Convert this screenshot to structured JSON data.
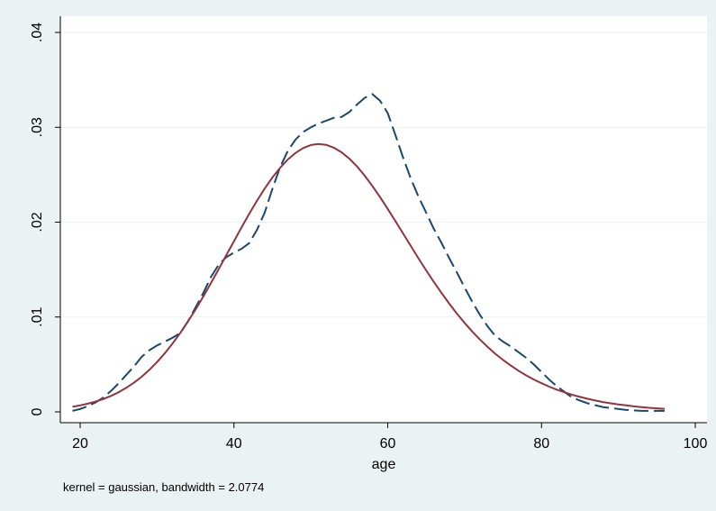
{
  "chart_data": {
    "type": "line",
    "title": "",
    "xlabel": "age",
    "ylabel": "",
    "note": "kernel = gaussian, bandwidth = 2.0774",
    "xlim": [
      19,
      96
    ],
    "ylim": [
      0,
      0.04
    ],
    "x_ticks": [
      20,
      40,
      60,
      80,
      100
    ],
    "x_tick_labels": [
      "20",
      "40",
      "60",
      "80",
      "100"
    ],
    "y_ticks": [
      0,
      0.01,
      0.02,
      0.03,
      0.04
    ],
    "y_tick_labels": [
      "0",
      ".01",
      ".02",
      ".03",
      ".04"
    ],
    "grid": true,
    "legend": "none",
    "colors": {
      "background": "#eaf2f3",
      "plot_area": "#ffffff",
      "kernel_density": "#1a476f",
      "normal_density": "#90353b",
      "grid": "#eaf2f3"
    },
    "series": [
      {
        "style": "dashed",
        "x": [
          19,
          20,
          21,
          22,
          23,
          24,
          25,
          26,
          27,
          28,
          29,
          30,
          31,
          32,
          33,
          34,
          35,
          36,
          37,
          38,
          39,
          40,
          41,
          42,
          43,
          44,
          45,
          46,
          47,
          48,
          49,
          50,
          51,
          52,
          53,
          54,
          55,
          56,
          57,
          58,
          59,
          60,
          61,
          62,
          63,
          64,
          65,
          66,
          67,
          68,
          69,
          70,
          71,
          72,
          73,
          74,
          75,
          76,
          77,
          78,
          79,
          80,
          81,
          82,
          83,
          84,
          85,
          86,
          87,
          88,
          89,
          90,
          91,
          92,
          93,
          94,
          95,
          96
        ],
        "values": [
          0.0001,
          0.0003,
          0.0006,
          0.001,
          0.0015,
          0.0022,
          0.003,
          0.0039,
          0.0048,
          0.0058,
          0.0065,
          0.007,
          0.0074,
          0.0078,
          0.0083,
          0.0095,
          0.011,
          0.0125,
          0.0142,
          0.0155,
          0.0163,
          0.0168,
          0.0172,
          0.0178,
          0.0192,
          0.021,
          0.0235,
          0.0258,
          0.0275,
          0.0287,
          0.0295,
          0.03,
          0.0304,
          0.0307,
          0.031,
          0.0311,
          0.0316,
          0.0324,
          0.0331,
          0.0335,
          0.0328,
          0.0315,
          0.0292,
          0.0268,
          0.0246,
          0.0227,
          0.021,
          0.0193,
          0.0178,
          0.0162,
          0.0147,
          0.0131,
          0.0116,
          0.0102,
          0.009,
          0.008,
          0.0074,
          0.0069,
          0.0063,
          0.0057,
          0.005,
          0.0042,
          0.0034,
          0.0027,
          0.0021,
          0.0015,
          0.0012,
          0.0009,
          0.0007,
          0.0005,
          0.0004,
          0.0003,
          0.0002,
          0.00015,
          0.0001,
          0.0001,
          0.0001,
          0.0001
        ]
      },
      {
        "style": "solid",
        "x": [
          19,
          20,
          21,
          22,
          23,
          24,
          25,
          26,
          27,
          28,
          29,
          30,
          31,
          32,
          33,
          34,
          35,
          36,
          37,
          38,
          39,
          40,
          41,
          42,
          43,
          44,
          45,
          46,
          47,
          48,
          49,
          50,
          51,
          52,
          53,
          54,
          55,
          56,
          57,
          58,
          59,
          60,
          61,
          62,
          63,
          64,
          65,
          66,
          67,
          68,
          69,
          70,
          71,
          72,
          73,
          74,
          75,
          76,
          77,
          78,
          79,
          80,
          81,
          82,
          83,
          84,
          85,
          86,
          87,
          88,
          89,
          90,
          91,
          92,
          93,
          94,
          95,
          96
        ],
        "values": [
          0.00053,
          0.00068,
          0.00086,
          0.00108,
          0.00135,
          0.00168,
          0.00207,
          0.00254,
          0.00308,
          0.00371,
          0.00443,
          0.00525,
          0.00617,
          0.00718,
          0.00829,
          0.0095,
          0.01078,
          0.01214,
          0.01356,
          0.01502,
          0.01651,
          0.018,
          0.01947,
          0.0209,
          0.02227,
          0.02354,
          0.0247,
          0.02573,
          0.0266,
          0.0273,
          0.02781,
          0.02813,
          0.02824,
          0.02815,
          0.02785,
          0.02736,
          0.0267,
          0.02587,
          0.0249,
          0.02382,
          0.02264,
          0.0214,
          0.02011,
          0.0188,
          0.01749,
          0.01619,
          0.01492,
          0.0137,
          0.01252,
          0.01141,
          0.01036,
          0.00938,
          0.00847,
          0.00762,
          0.00684,
          0.00612,
          0.00547,
          0.00488,
          0.00434,
          0.00385,
          0.00341,
          0.00302,
          0.00266,
          0.00234,
          0.00206,
          0.0018,
          0.00158,
          0.00138,
          0.0012,
          0.00104,
          0.0009,
          0.00078,
          0.00068,
          0.00058,
          0.0005,
          0.00043,
          0.00037,
          0.00032
        ]
      }
    ]
  }
}
